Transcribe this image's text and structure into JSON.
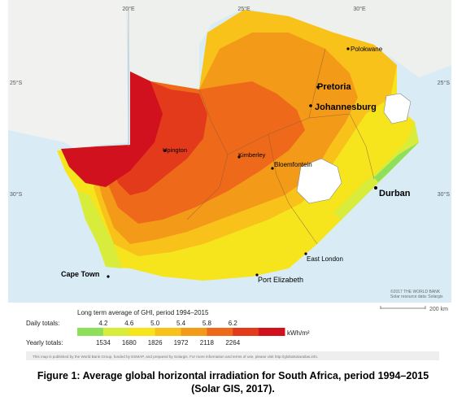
{
  "map": {
    "longitudes": [
      "20°E",
      "25°E",
      "30°E"
    ],
    "latitudes_left": [
      "25°S",
      "30°S"
    ],
    "latitudes_right": [
      "25°S",
      "30°S"
    ],
    "cities": [
      {
        "name": "Polokwane",
        "key": "polokwane"
      },
      {
        "name": "Pretoria",
        "key": "pretoria"
      },
      {
        "name": "Johannesburg",
        "key": "johannesburg"
      },
      {
        "name": "Upington",
        "key": "upington"
      },
      {
        "name": "Kimberley",
        "key": "kimberley"
      },
      {
        "name": "Bloemfontein",
        "key": "bloemfontein"
      },
      {
        "name": "Durban",
        "key": "durban"
      },
      {
        "name": "East London",
        "key": "east-london"
      },
      {
        "name": "Cape Town",
        "key": "cape-town"
      },
      {
        "name": "Port Elizabeth",
        "key": "port-elizabeth"
      }
    ],
    "copyright_line1": "©2017 THE WORLD BANK",
    "copyright_line2": "Solar resource data: Solargis",
    "scale_label": "200 km"
  },
  "legend": {
    "title": "Long term average of GHI, period 1994–2015",
    "daily_label": "Daily totals:",
    "yearly_label": "Yearly totals:",
    "daily_values": [
      "4.2",
      "4.6",
      "5.0",
      "5.4",
      "5.8",
      "6.2"
    ],
    "yearly_values": [
      "1534",
      "1680",
      "1826",
      "1972",
      "2118",
      "2264"
    ],
    "unit": "kWh/m²",
    "colors": [
      "#8ee05a",
      "#d8ec3c",
      "#f6e51c",
      "#f8c21a",
      "#f39a18",
      "#ee6a1a",
      "#e43a1c",
      "#d1121e"
    ]
  },
  "footer": {
    "note": "This map is published by the World Bank Group, funded by ESMAP, and prepared by Solargis. For more information and terms of use, please visit http://globalsolaratlas.info."
  },
  "caption": {
    "line1": "Figure 1: Average global horizontal irradiation for South Africa, period 1994–2015",
    "line2": "(Solar GIS, 2017)."
  }
}
